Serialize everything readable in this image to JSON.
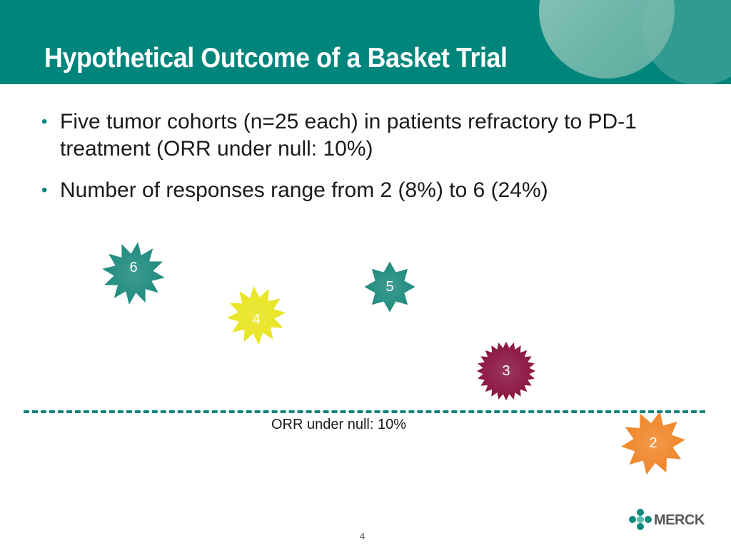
{
  "header": {
    "title": "Hypothetical Outcome of a Basket Trial"
  },
  "bullets": [
    "Five tumor cohorts (n=25 each) in patients refractory to PD-1 treatment (ORR under null: 10%)",
    "Number of responses range from 2 (8%) to 6 (24%)"
  ],
  "bursts": [
    {
      "label": "6",
      "color": "#1e8a7e"
    },
    {
      "label": "4",
      "color": "#e8e41e"
    },
    {
      "label": "5",
      "color": "#1e8a7e"
    },
    {
      "label": "3",
      "color": "#8a1540"
    },
    {
      "label": "2",
      "color": "#f0862a"
    }
  ],
  "null_line": {
    "label": "ORR under null: 10%",
    "color": "#14837c"
  },
  "logo": {
    "text": "MERCK"
  },
  "footer": {
    "page": "4"
  }
}
